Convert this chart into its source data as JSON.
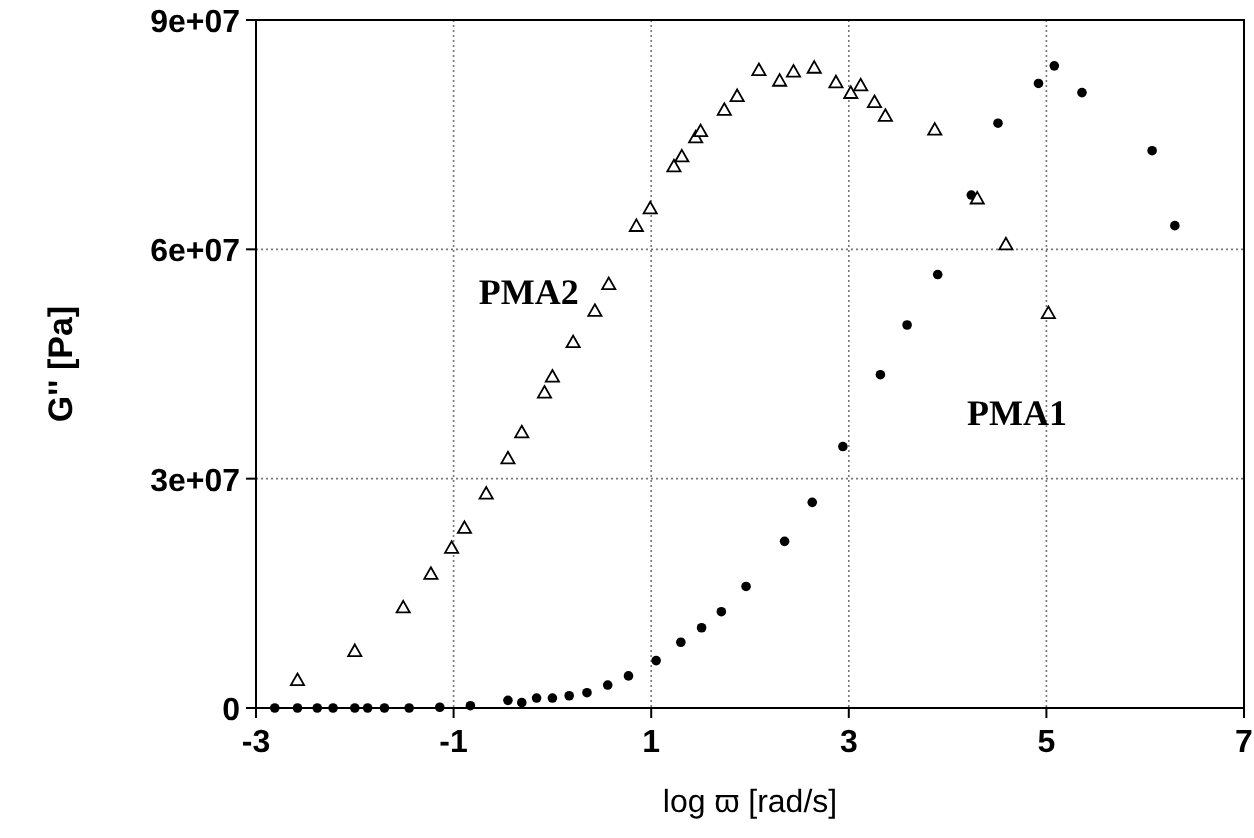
{
  "chart_data": {
    "type": "scatter",
    "xlabel": "log ϖ [rad/s]",
    "ylabel": "G'' [Pa]",
    "xlim": [
      -3,
      7
    ],
    "xticks": [
      -3,
      -1,
      1,
      3,
      5,
      7
    ],
    "ylim": [
      0,
      90000000
    ],
    "yticks": [
      {
        "value": 0,
        "label": "0"
      },
      {
        "value": 30000000,
        "label": "3e+07"
      },
      {
        "value": 60000000,
        "label": "6e+07"
      },
      {
        "value": 90000000,
        "label": "9e+07"
      }
    ],
    "grid": true,
    "series": [
      {
        "name": "PMA1",
        "color": "#000000",
        "marker": "circle",
        "x": [
          -2.81,
          -2.58,
          -2.38,
          -2.22,
          -2.0,
          -1.87,
          -1.7,
          -1.45,
          -1.14,
          -0.83,
          -0.45,
          -0.31,
          -0.16,
          0.0,
          0.17,
          0.35,
          0.56,
          0.77,
          1.05,
          1.3,
          1.51,
          1.71,
          1.96,
          2.35,
          2.63,
          2.94,
          3.32,
          3.59,
          3.9,
          4.24,
          4.51,
          4.92,
          5.08,
          5.36,
          6.07,
          6.3
        ],
        "values": [
          0,
          0,
          0,
          0,
          0,
          0,
          0,
          0,
          100000,
          300000,
          1000000,
          700000,
          1300000,
          1300000,
          1600000,
          2000000,
          3000000,
          4200000,
          6200000,
          8600000,
          10500000,
          12600000,
          15900000,
          21800000,
          26900000,
          34200000,
          43600000,
          50100000,
          56700000,
          67100000,
          76500000,
          81700000,
          84000000,
          80500000,
          72900000,
          63100000
        ]
      },
      {
        "name": "PMA2",
        "color": "#000000",
        "marker": "triangle",
        "x": [
          -2.58,
          -2.0,
          -1.51,
          -1.23,
          -1.02,
          -0.89,
          -0.67,
          -0.45,
          -0.31,
          -0.08,
          0.0,
          0.21,
          0.43,
          0.57,
          0.85,
          0.99,
          1.23,
          1.31,
          1.45,
          1.5,
          1.74,
          1.87,
          2.09,
          2.3,
          2.44,
          2.65,
          2.87,
          3.02,
          3.12,
          3.26,
          3.37,
          3.87,
          4.3,
          4.59,
          5.02
        ],
        "values": [
          3600000,
          7400000,
          13100000,
          17500000,
          20900000,
          23500000,
          28000000,
          32600000,
          36000000,
          41200000,
          43300000,
          47800000,
          51900000,
          55400000,
          63000000,
          65300000,
          70800000,
          72100000,
          74600000,
          75400000,
          78200000,
          80000000,
          83400000,
          82000000,
          83200000,
          83700000,
          81800000,
          80400000,
          81400000,
          79200000,
          77400000,
          75600000,
          66600000,
          60600000,
          51600000
        ]
      }
    ]
  }
}
